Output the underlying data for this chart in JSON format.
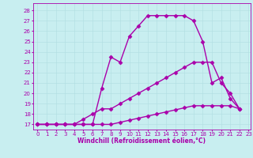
{
  "xlabel": "Windchill (Refroidissement éolien,°C)",
  "bg_color": "#c8eef0",
  "grid_color": "#b0dde0",
  "line_color": "#aa00aa",
  "line1_x": [
    0,
    1,
    2,
    3,
    4,
    5,
    6,
    7,
    8,
    9,
    10,
    11,
    12,
    13,
    14,
    15,
    16,
    17,
    18,
    19,
    20,
    21,
    22
  ],
  "line1_y": [
    17,
    17,
    17,
    17,
    17,
    17,
    17,
    20.5,
    23.5,
    23,
    25.5,
    26.5,
    27.5,
    27.5,
    27.5,
    27.5,
    27.5,
    27,
    25,
    21,
    21.5,
    19.5,
    18.5
  ],
  "line2_x": [
    0,
    1,
    2,
    3,
    4,
    5,
    6,
    7,
    8,
    9,
    10,
    11,
    12,
    13,
    14,
    15,
    16,
    17,
    18,
    19,
    20,
    21,
    22
  ],
  "line2_y": [
    17,
    17,
    17,
    17,
    17,
    17.5,
    18,
    18.5,
    18.5,
    19,
    19.5,
    20,
    20.5,
    21,
    21.5,
    22,
    22.5,
    23,
    23,
    23,
    21,
    20,
    18.5
  ],
  "line3_x": [
    0,
    1,
    2,
    3,
    4,
    5,
    6,
    7,
    8,
    9,
    10,
    11,
    12,
    13,
    14,
    15,
    16,
    17,
    18,
    19,
    20,
    21,
    22
  ],
  "line3_y": [
    17,
    17,
    17,
    17,
    17,
    17,
    17,
    17,
    17,
    17.2,
    17.4,
    17.6,
    17.8,
    18,
    18.2,
    18.4,
    18.6,
    18.8,
    18.8,
    18.8,
    18.8,
    18.8,
    18.5
  ],
  "xlim": [
    -0.5,
    23.2
  ],
  "ylim": [
    16.5,
    28.7
  ],
  "yticks": [
    17,
    18,
    19,
    20,
    21,
    22,
    23,
    24,
    25,
    26,
    27,
    28
  ],
  "xticks": [
    0,
    1,
    2,
    3,
    4,
    5,
    6,
    7,
    8,
    9,
    10,
    11,
    12,
    13,
    14,
    15,
    16,
    17,
    18,
    19,
    20,
    21,
    22,
    23
  ],
  "marker": "D",
  "markersize": 2.5,
  "linewidth": 1.0,
  "axis_fontsize": 5.5,
  "tick_fontsize": 5.0
}
